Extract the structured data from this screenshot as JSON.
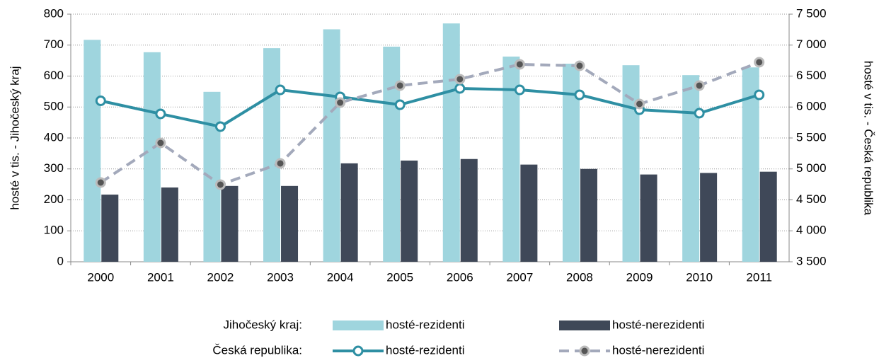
{
  "chart_data": {
    "type": "bar-line",
    "categories": [
      "2000",
      "2001",
      "2002",
      "2003",
      "2004",
      "2005",
      "2006",
      "2007",
      "2008",
      "2009",
      "2010",
      "2011"
    ],
    "ylabel": "hosté v tis. - Jihočeský kraj",
    "y2label": "hosté v tis. - Česká republika",
    "ylim": [
      0,
      800
    ],
    "yticks": [
      0,
      100,
      200,
      300,
      400,
      500,
      600,
      700,
      800
    ],
    "y2lim": [
      3500,
      7500
    ],
    "y2ticks": [
      {
        "value": 3500,
        "label": "3 500"
      },
      {
        "value": 4000,
        "label": "4 000"
      },
      {
        "value": 4500,
        "label": "4 500"
      },
      {
        "value": 5000,
        "label": "5 000"
      },
      {
        "value": 5500,
        "label": "5 500"
      },
      {
        "value": 6000,
        "label": "6 000"
      },
      {
        "value": 6500,
        "label": "6 500"
      },
      {
        "value": 7000,
        "label": "7 000"
      },
      {
        "value": 7500,
        "label": "7 500"
      }
    ],
    "grid": true,
    "series_groups": [
      {
        "label": "Jihočeský kraj:",
        "series": [
          {
            "name": "hosté-rezidenti",
            "type": "bar",
            "color": "#9fd5de",
            "values": [
              717,
              677,
              549,
              690,
              751,
              695,
              770,
              663,
              640,
              635,
              603,
              628
            ]
          },
          {
            "name": "hosté-nerezidenti",
            "type": "bar",
            "color": "#3f4858",
            "values": [
              217,
              240,
              245,
              245,
              318,
              327,
              332,
              314,
              300,
              282,
              287,
              291
            ]
          }
        ]
      },
      {
        "label": "Česká republika:",
        "series": [
          {
            "name": "hosté-rezidenti",
            "type": "line",
            "axis": "y2",
            "color": "#2e8fa3",
            "dashed": false,
            "values": [
              6100,
              5889,
              5683,
              6277,
              6163,
              6037,
              6300,
              6277,
              6197,
              5957,
              5900,
              6197
            ]
          },
          {
            "name": "hosté-nerezidenti",
            "type": "line",
            "axis": "y2",
            "color": "#a3a9bb",
            "dashed": true,
            "values": [
              4780,
              5420,
              4746,
              5089,
              6071,
              6346,
              6449,
              6689,
              6666,
              6049,
              6346,
              6723
            ]
          }
        ]
      }
    ]
  }
}
